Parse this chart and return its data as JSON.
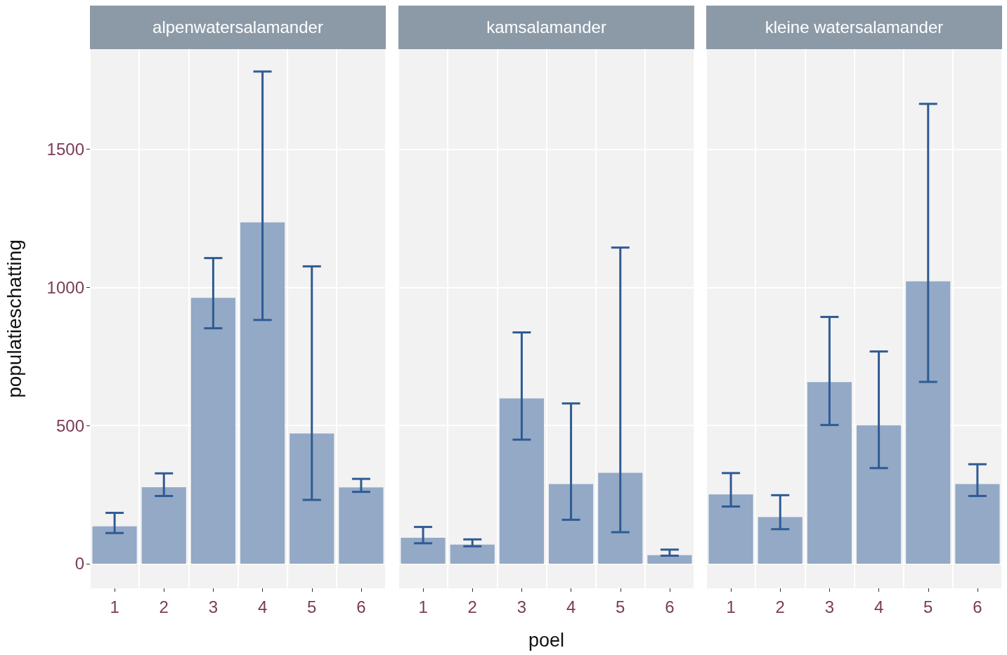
{
  "chart_data": [
    {
      "type": "bar",
      "title": "alpenwatersalamander",
      "ylabel": "populatieschatting",
      "categories": [
        "1",
        "2",
        "3",
        "4",
        "5",
        "6"
      ],
      "values": [
        135,
        277,
        962,
        1235,
        471,
        276
      ],
      "errors": [
        [
          111,
          184
        ],
        [
          245,
          327
        ],
        [
          852,
          1106
        ],
        [
          882,
          1781
        ],
        [
          231,
          1076
        ],
        [
          260,
          307
        ]
      ],
      "color": "#93a9c6",
      "ylim": [
        -89,
        1862
      ],
      "yticks": [
        0,
        500,
        1000,
        1500
      ],
      "grid": true
    },
    {
      "type": "bar",
      "title": "kamsalamander",
      "xlabel": "poel",
      "categories": [
        "1",
        "2",
        "3",
        "4",
        "5",
        "6"
      ],
      "values": [
        94,
        69,
        598,
        288,
        329,
        31
      ],
      "errors": [
        [
          74,
          133
        ],
        [
          63,
          88
        ],
        [
          449,
          837
        ],
        [
          159,
          580
        ],
        [
          114,
          1144
        ],
        [
          29,
          51
        ]
      ],
      "color": "#93a9c6",
      "ylim": [
        -89,
        1862
      ],
      "yticks": [
        0,
        500,
        1000,
        1500
      ],
      "grid": true,
      "tick_labels": "x"
    },
    {
      "type": "bar",
      "title": "kleine watersalamander",
      "categories": [
        "1",
        "2",
        "3",
        "4",
        "5",
        "6"
      ],
      "values": [
        251,
        169,
        657,
        501,
        1022,
        288
      ],
      "errors": [
        [
          207,
          328
        ],
        [
          125,
          248
        ],
        [
          502,
          893
        ],
        [
          346,
          768
        ],
        [
          658,
          1664
        ],
        [
          245,
          360
        ]
      ],
      "color": "#93a9c6",
      "ylim": [
        -89,
        1862
      ],
      "yticks": [
        0,
        500,
        1000,
        1500
      ],
      "grid": true,
      "tick_labels": "x"
    }
  ]
}
